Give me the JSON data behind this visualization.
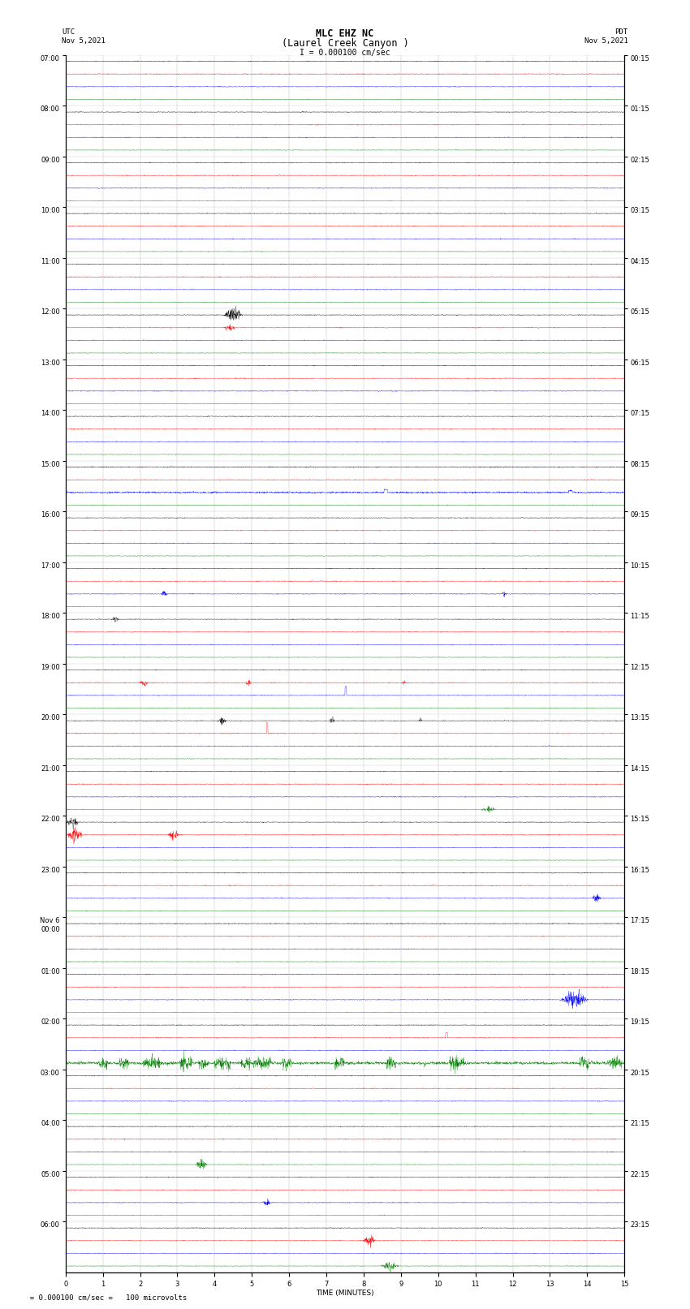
{
  "title_line1": "MLC EHZ NC",
  "title_line2": "(Laurel Creek Canyon )",
  "scale_label": "I = 0.000100 cm/sec",
  "utc_label": "UTC\nNov 5,2021",
  "pdt_label": "PDT\nNov 5,2021",
  "xlabel": "TIME (MINUTES)",
  "footer": "= 0.000100 cm/sec =   100 microvolts",
  "num_hour_rows": 24,
  "minutes_per_row": 15,
  "traces_per_hour": 4,
  "trace_colors": [
    "black",
    "red",
    "blue",
    "green"
  ],
  "left_labels": [
    "07:00",
    "08:00",
    "09:00",
    "10:00",
    "11:00",
    "12:00",
    "13:00",
    "14:00",
    "15:00",
    "16:00",
    "17:00",
    "18:00",
    "19:00",
    "20:00",
    "21:00",
    "22:00",
    "23:00",
    "Nov 6\n00:00",
    "01:00",
    "02:00",
    "03:00",
    "04:00",
    "05:00",
    "06:00"
  ],
  "right_labels": [
    "00:15",
    "01:15",
    "02:15",
    "03:15",
    "04:15",
    "05:15",
    "06:15",
    "07:15",
    "08:15",
    "09:15",
    "10:15",
    "11:15",
    "12:15",
    "13:15",
    "14:15",
    "15:15",
    "16:15",
    "17:15",
    "18:15",
    "19:15",
    "20:15",
    "21:15",
    "22:15",
    "23:15"
  ],
  "background_color": "#ffffff",
  "grid_color": "#888888",
  "title_fontsize": 8.5,
  "label_fontsize": 6.5,
  "tick_fontsize": 6,
  "noise_seed": 12345,
  "samples_per_trace": 3000,
  "trace_amplitude": 0.28,
  "noise_std": 0.045
}
